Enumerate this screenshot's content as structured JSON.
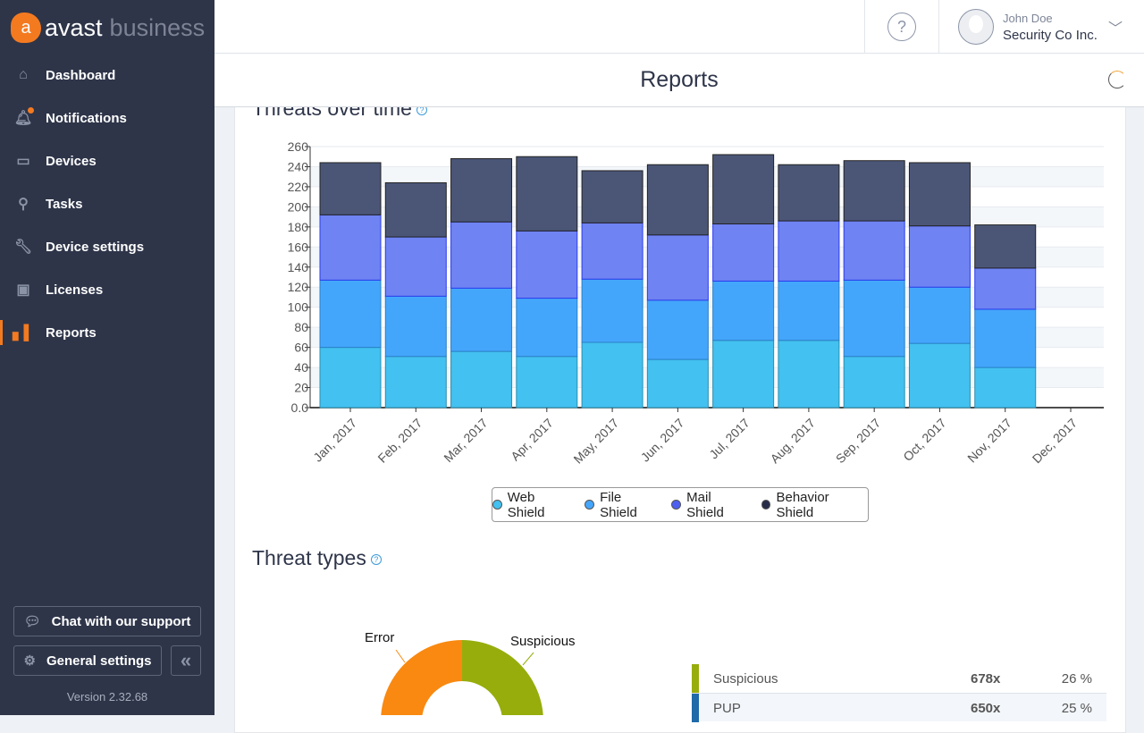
{
  "brand": {
    "name": "avast",
    "suffix": "business",
    "color": "#f47a20"
  },
  "sidebar": {
    "items": [
      {
        "label": "Dashboard",
        "icon": "home-icon"
      },
      {
        "label": "Notifications",
        "icon": "bell-icon",
        "badge": true
      },
      {
        "label": "Devices",
        "icon": "monitor-icon"
      },
      {
        "label": "Tasks",
        "icon": "search-icon"
      },
      {
        "label": "Device settings",
        "icon": "wrench-icon"
      },
      {
        "label": "Licenses",
        "icon": "certificate-icon"
      },
      {
        "label": "Reports",
        "icon": "bar-chart-icon",
        "active": true
      }
    ],
    "chat_label": "Chat with our support",
    "settings_label": "General settings",
    "version": "Version 2.32.68"
  },
  "header": {
    "help": "?",
    "user_name": "John Doe",
    "company": "Security Co Inc."
  },
  "page": {
    "title": "Reports"
  },
  "threats_over_time": {
    "title": "Threats over time"
  },
  "chart_data": {
    "type": "bar",
    "stacked": true,
    "title": "Threats over time",
    "categories": [
      "Jan, 2017",
      "Feb, 2017",
      "Mar, 2017",
      "Apr, 2017",
      "May, 2017",
      "Jun, 2017",
      "Jul, 2017",
      "Aug, 2017",
      "Sep, 2017",
      "Oct, 2017",
      "Nov, 2017",
      "Dec, 2017"
    ],
    "ylim": [
      0,
      260
    ],
    "yticks": [
      "0.0",
      "20",
      "40",
      "60",
      "80",
      "100",
      "120",
      "140",
      "160",
      "180",
      "200",
      "220",
      "240",
      "260"
    ],
    "grid": true,
    "legend": "bottom",
    "series": [
      {
        "name": "Web Shield",
        "color": "#43c1f0",
        "values": [
          60,
          51,
          56,
          51,
          65,
          48,
          67,
          67,
          51,
          64,
          40,
          0
        ]
      },
      {
        "name": "File Shield",
        "color": "#44a6fb",
        "values": [
          67,
          60,
          63,
          58,
          63,
          59,
          59,
          59,
          76,
          56,
          58,
          0
        ]
      },
      {
        "name": "Mail Shield",
        "color": "#6f83f2",
        "values": [
          65,
          59,
          66,
          67,
          56,
          65,
          57,
          60,
          59,
          61,
          41,
          0
        ]
      },
      {
        "name": "Behavior Shield",
        "color": "#4b5677",
        "values": [
          52,
          54,
          63,
          74,
          52,
          70,
          69,
          56,
          60,
          63,
          43,
          0
        ]
      }
    ]
  },
  "threat_types": {
    "title": "Threat types",
    "slices": [
      {
        "label": "Suspicious",
        "color": "#97ad0c",
        "percent": 26
      },
      {
        "label": "Error",
        "color": "#f98910"
      }
    ],
    "rows": [
      {
        "label": "Suspicious",
        "count": "678x",
        "percent": "26 %",
        "color": "#97ad0c"
      },
      {
        "label": "PUP",
        "count": "650x",
        "percent": "25 %",
        "color": "#1f6aa8"
      }
    ]
  }
}
